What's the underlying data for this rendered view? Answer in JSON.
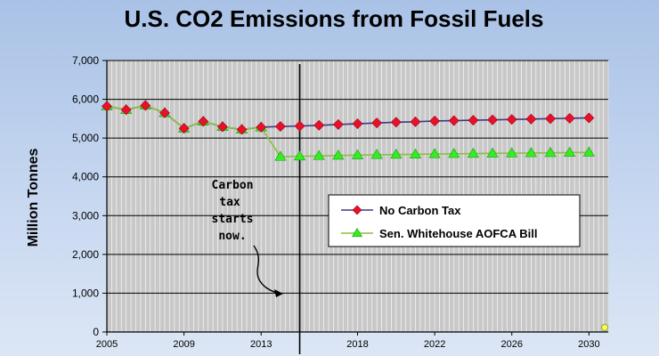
{
  "chart_data": {
    "type": "line",
    "title": "U.S. CO2 Emissions from Fossil Fuels",
    "ylabel": "Million Tonnes",
    "xlabel": "",
    "xlim": [
      2005,
      2031
    ],
    "ylim": [
      0,
      7000
    ],
    "yticks": [
      "0",
      "1,000",
      "2,000",
      "3,000",
      "4,000",
      "5,000",
      "6,000",
      "7,000"
    ],
    "xticks": [
      "2005",
      "2009",
      "2013",
      "2018",
      "2022",
      "2026",
      "2030"
    ],
    "grid": true,
    "legend_position": "center-right",
    "annotation": {
      "lines": [
        "Carbon",
        "tax",
        "starts",
        "now."
      ],
      "marker_x": 2015
    },
    "series": [
      {
        "name": "No Carbon Tax",
        "color": "#e8102a",
        "line_color": "#3a3a8c",
        "marker": "diamond",
        "x": [
          2005,
          2006,
          2007,
          2008,
          2009,
          2010,
          2011,
          2012,
          2013,
          2014,
          2015,
          2016,
          2017,
          2018,
          2019,
          2020,
          2021,
          2022,
          2023,
          2024,
          2025,
          2026,
          2027,
          2028,
          2029,
          2030
        ],
        "y": [
          5820,
          5730,
          5840,
          5650,
          5250,
          5430,
          5290,
          5220,
          5280,
          5300,
          5310,
          5330,
          5350,
          5370,
          5390,
          5410,
          5420,
          5440,
          5450,
          5460,
          5470,
          5480,
          5490,
          5500,
          5510,
          5520
        ]
      },
      {
        "name": "Sen. Whitehouse AOFCA Bill",
        "color": "#33ee22",
        "line_color": "#8bbf3c",
        "marker": "triangle",
        "x": [
          2005,
          2006,
          2007,
          2008,
          2009,
          2010,
          2011,
          2012,
          2013,
          2014,
          2015,
          2016,
          2017,
          2018,
          2019,
          2020,
          2021,
          2022,
          2023,
          2024,
          2025,
          2026,
          2027,
          2028,
          2029,
          2030
        ],
        "y": [
          5820,
          5730,
          5840,
          5650,
          5250,
          5430,
          5290,
          5220,
          5280,
          4520,
          4530,
          4540,
          4550,
          4560,
          4570,
          4575,
          4580,
          4590,
          4595,
          4600,
          4605,
          4610,
          4615,
          4620,
          4625,
          4630
        ]
      }
    ]
  }
}
